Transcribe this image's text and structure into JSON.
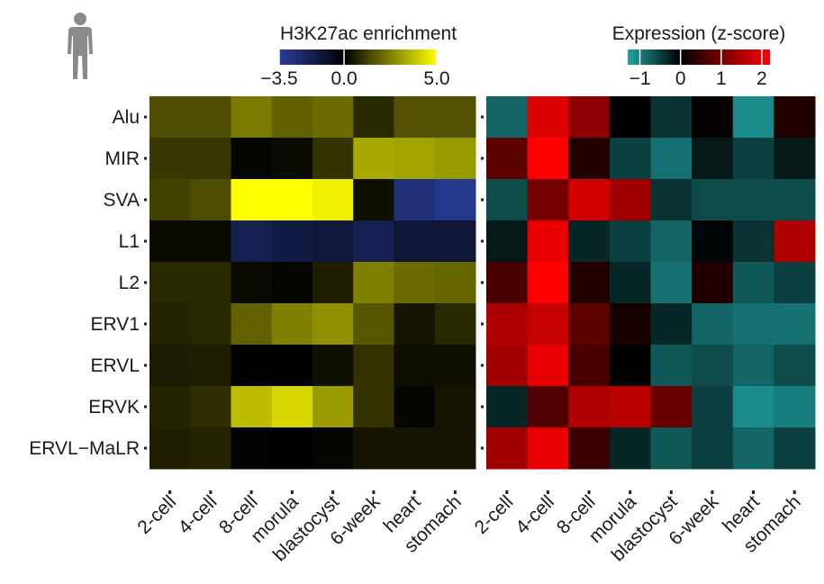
{
  "chart_data": [
    {
      "type": "heatmap",
      "title": "H3K27ac enrichment",
      "rows": [
        "Alu",
        "MIR",
        "SVA",
        "L1",
        "L2",
        "ERV1",
        "ERVL",
        "ERVK",
        "ERVL−MaLR"
      ],
      "columns": [
        "2-cell",
        "4-cell",
        "8-cell",
        "morula",
        "blastocyst",
        "6-week",
        "heart",
        "stomach"
      ],
      "values": [
        [
          1.5,
          1.5,
          2.4,
          1.9,
          2.1,
          0.8,
          1.6,
          1.6
        ],
        [
          1.1,
          1.1,
          0.1,
          0.2,
          1.0,
          3.3,
          3.2,
          3.0
        ],
        [
          1.3,
          1.5,
          5.0,
          5.0,
          4.7,
          0.3,
          -2.7,
          -3.1
        ],
        [
          0.2,
          0.2,
          -1.8,
          -1.5,
          -1.3,
          -1.8,
          -1.2,
          -1.2
        ],
        [
          0.8,
          0.8,
          0.2,
          0.1,
          0.6,
          2.5,
          2.1,
          2.0
        ],
        [
          0.7,
          0.8,
          1.9,
          2.5,
          2.8,
          1.7,
          0.4,
          0.8
        ],
        [
          0.5,
          0.6,
          0.0,
          0.0,
          0.3,
          1.0,
          0.3,
          0.3
        ],
        [
          0.7,
          0.9,
          3.7,
          4.2,
          3.0,
          1.0,
          0.1,
          0.4
        ],
        [
          0.6,
          0.7,
          -0.1,
          0.0,
          0.1,
          0.4,
          0.4,
          0.4
        ]
      ],
      "colorbar": {
        "ticks": [
          "−3.5",
          "0.0",
          "5.0"
        ],
        "min": -3.5,
        "max": 5.0,
        "low_color": "#2a3e9c",
        "mid_color": "#000000",
        "high_color": "#ffff00"
      }
    },
    {
      "type": "heatmap",
      "title": "Expression (z-score)",
      "rows": [
        "Alu",
        "MIR",
        "SVA",
        "L1",
        "L2",
        "ERV1",
        "ERVL",
        "ERVK",
        "ERVL−MaLR"
      ],
      "columns": [
        "2-cell",
        "4-cell",
        "8-cell",
        "morula",
        "blastocyst",
        "6-week",
        "heart",
        "stomach"
      ],
      "values": [
        [
          -0.8,
          1.9,
          1.2,
          0.0,
          -0.4,
          0.05,
          -1.1,
          0.3
        ],
        [
          0.8,
          2.2,
          0.3,
          -0.5,
          -0.9,
          -0.2,
          -0.5,
          -0.2
        ],
        [
          -0.6,
          1.0,
          1.8,
          1.4,
          -0.4,
          -0.6,
          -0.6,
          -0.6
        ],
        [
          -0.2,
          2.0,
          -0.3,
          -0.5,
          -0.8,
          -0.05,
          -0.4,
          1.5
        ],
        [
          0.6,
          2.2,
          0.3,
          -0.3,
          -0.9,
          0.3,
          -0.7,
          -0.5
        ],
        [
          1.5,
          1.7,
          0.8,
          0.2,
          -0.3,
          -0.8,
          -0.9,
          -0.9
        ],
        [
          1.4,
          2.0,
          0.6,
          0.0,
          -0.7,
          -0.6,
          -0.8,
          -0.6
        ],
        [
          -0.3,
          0.7,
          1.5,
          1.6,
          0.9,
          -0.5,
          -1.1,
          -1.0
        ],
        [
          1.4,
          2.0,
          0.5,
          -0.3,
          -0.7,
          -0.5,
          -0.8,
          -0.5
        ]
      ],
      "colorbar": {
        "ticks": [
          "−1",
          "0",
          "1",
          "2"
        ],
        "min": -1.3,
        "max": 2.2,
        "low_color": "#1fa3a3",
        "mid_color": "#000000",
        "high_color": "#ff0000"
      }
    }
  ]
}
